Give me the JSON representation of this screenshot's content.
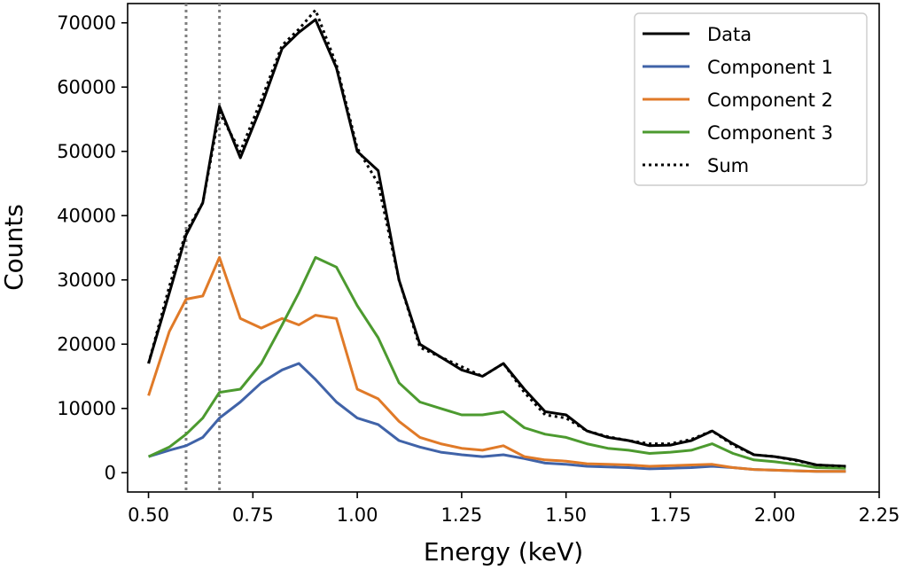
{
  "chart_data": {
    "type": "line",
    "xlabel": "Energy (keV)",
    "ylabel": "Counts",
    "xlim": [
      0.45,
      2.25
    ],
    "ylim": [
      -3000,
      73000
    ],
    "xticks": [
      0.5,
      0.75,
      1.0,
      1.25,
      1.5,
      1.75,
      2.0,
      2.25
    ],
    "xtick_labels": [
      "0.50",
      "0.75",
      "1.00",
      "1.25",
      "1.50",
      "1.75",
      "2.00",
      "2.25"
    ],
    "yticks": [
      0,
      10000,
      20000,
      30000,
      40000,
      50000,
      60000,
      70000
    ],
    "ytick_labels": [
      "0",
      "10000",
      "20000",
      "30000",
      "40000",
      "50000",
      "60000",
      "70000"
    ],
    "vlines": [
      0.59,
      0.67
    ],
    "legend_position": "top-right",
    "x": [
      0.5,
      0.55,
      0.59,
      0.63,
      0.67,
      0.72,
      0.77,
      0.82,
      0.86,
      0.9,
      0.95,
      1.0,
      1.05,
      1.1,
      1.15,
      1.2,
      1.25,
      1.3,
      1.35,
      1.4,
      1.45,
      1.5,
      1.55,
      1.6,
      1.65,
      1.7,
      1.75,
      1.8,
      1.85,
      1.9,
      1.95,
      2.0,
      2.05,
      2.1,
      2.17
    ],
    "series": [
      {
        "name": "Data",
        "color": "#000000",
        "style": "solid",
        "values": [
          17000,
          28000,
          37000,
          42000,
          57000,
          49000,
          57000,
          66000,
          68500,
          70500,
          63000,
          50000,
          47000,
          30000,
          20000,
          18000,
          16000,
          15000,
          17000,
          13000,
          9500,
          9000,
          6500,
          5500,
          5000,
          4200,
          4300,
          5000,
          6500,
          4500,
          2800,
          2500,
          2000,
          1200,
          1000
        ]
      },
      {
        "name": "Component 1",
        "color": "#4063a8",
        "style": "solid",
        "values": [
          2500,
          3500,
          4200,
          5500,
          8500,
          11000,
          14000,
          16000,
          17000,
          14500,
          11000,
          8500,
          7500,
          5000,
          4000,
          3200,
          2800,
          2500,
          2800,
          2200,
          1500,
          1300,
          1000,
          900,
          800,
          600,
          700,
          800,
          1000,
          800,
          500,
          400,
          300,
          200,
          200
        ]
      },
      {
        "name": "Component 2",
        "color": "#e07a28",
        "style": "solid",
        "values": [
          12000,
          22000,
          27000,
          27500,
          33500,
          24000,
          22500,
          24000,
          23000,
          24500,
          24000,
          13000,
          11500,
          8000,
          5500,
          4500,
          3800,
          3500,
          4200,
          2500,
          2000,
          1800,
          1400,
          1300,
          1200,
          1000,
          1100,
          1200,
          1300,
          800,
          500,
          400,
          300,
          200,
          200
        ]
      },
      {
        "name": "Component 3",
        "color": "#4c9a2f",
        "style": "solid",
        "values": [
          2500,
          4000,
          6000,
          8500,
          12500,
          13000,
          17000,
          23000,
          28000,
          33500,
          32000,
          26000,
          21000,
          14000,
          11000,
          10000,
          9000,
          9000,
          9500,
          7000,
          6000,
          5500,
          4500,
          3800,
          3500,
          3000,
          3200,
          3500,
          4500,
          3000,
          2000,
          1700,
          1300,
          800,
          700
        ]
      },
      {
        "name": "Sum",
        "color": "#000000",
        "style": "dotted",
        "values": [
          17000,
          29000,
          37500,
          42000,
          56000,
          50000,
          58000,
          66500,
          69000,
          72000,
          63500,
          50500,
          45000,
          30000,
          19500,
          18000,
          16500,
          15000,
          17000,
          12500,
          9000,
          8500,
          6500,
          5600,
          5000,
          4500,
          4500,
          5200,
          6500,
          4300,
          2800,
          2500,
          1900,
          1200,
          1000
        ]
      }
    ]
  }
}
